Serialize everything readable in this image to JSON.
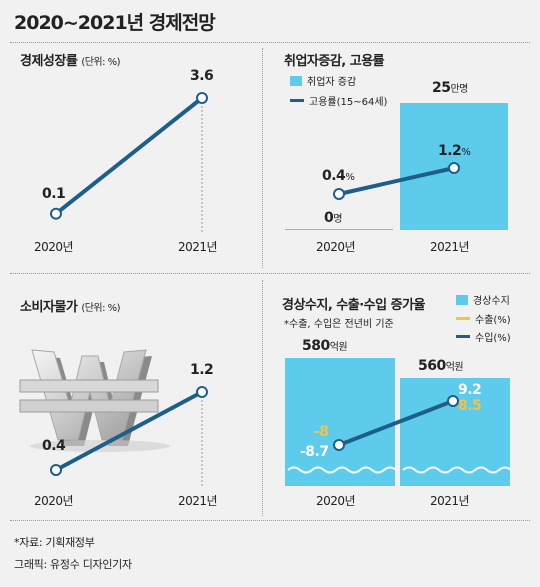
{
  "title": "2020~2021년 경제전망",
  "colors": {
    "navy": "#1d5f8b",
    "sky": "#5ccbec",
    "gold": "#f5c242"
  },
  "chart_data": [
    {
      "type": "line",
      "title": "경제성장률",
      "unit": "(단위: %)",
      "categories": [
        "2020년",
        "2021년"
      ],
      "series": [
        {
          "values": [
            0.1,
            3.6
          ],
          "labels": [
            "0.1",
            "3.6"
          ]
        }
      ]
    },
    {
      "type": "bar+line",
      "title": "취업자증감, 고용률",
      "categories": [
        "2020년",
        "2021년"
      ],
      "legend": [
        "취업자 증감",
        "고용률(15~64세)"
      ],
      "bar_series": {
        "name": "취업자 증감",
        "values": [
          0,
          25
        ],
        "labels": [
          {
            "num": "0",
            "unit": "명"
          },
          {
            "num": "25",
            "unit": "만명"
          }
        ]
      },
      "line_series": {
        "name": "고용률(15~64세)",
        "values": [
          0.4,
          1.2
        ],
        "labels": [
          {
            "num": "0.4",
            "unit": "%"
          },
          {
            "num": "1.2",
            "unit": "%"
          }
        ]
      }
    },
    {
      "type": "line",
      "title": "소비자물가",
      "unit": "(단위: %)",
      "categories": [
        "2020년",
        "2021년"
      ],
      "series": [
        {
          "values": [
            0.4,
            1.2
          ],
          "labels": [
            "0.4",
            "1.2"
          ]
        }
      ]
    },
    {
      "type": "bar+line",
      "title": "경상수지, 수출·수입 증가율",
      "note": "*수출, 수입은 전년비 기준",
      "categories": [
        "2020년",
        "2021년"
      ],
      "legend": [
        "경상수지",
        "수출(%)",
        "수입(%)"
      ],
      "bar_series": {
        "name": "경상수지",
        "values": [
          580,
          560
        ],
        "labels": [
          {
            "num": "580",
            "unit": "억원"
          },
          {
            "num": "560",
            "unit": "억원"
          }
        ]
      },
      "export_series": {
        "name": "수출(%)",
        "values": [
          -8,
          8.5
        ],
        "labels": [
          "-8",
          "8.5"
        ]
      },
      "import_series": {
        "name": "수입(%)",
        "values": [
          -8.7,
          9.2
        ],
        "labels": [
          "-8.7",
          "9.2"
        ]
      }
    }
  ],
  "footer": {
    "source": "*자료: 기획재정부",
    "credit": "그래픽: 유정수 디자인기자"
  }
}
